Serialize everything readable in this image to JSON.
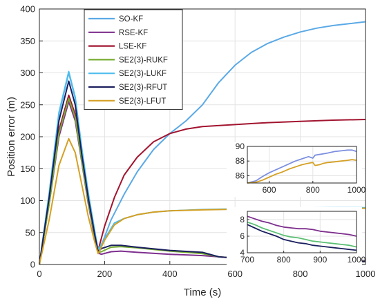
{
  "chart_data": {
    "type": "line",
    "xlabel": "Time (s)",
    "ylabel": "Position error  (m)",
    "xlim": [
      0,
      1000
    ],
    "ylim": [
      0,
      400
    ],
    "xticks": [
      0,
      200,
      400,
      600,
      800,
      1000
    ],
    "yticks": [
      0,
      50,
      100,
      150,
      200,
      250,
      300,
      350,
      400
    ],
    "grid": true,
    "legend_position": "top-center",
    "series": [
      {
        "name": "SO-KF",
        "color": "#5aa9e6",
        "points": [
          [
            0,
            0
          ],
          [
            30,
            110
          ],
          [
            60,
            235
          ],
          [
            90,
            300
          ],
          [
            110,
            260
          ],
          [
            130,
            180
          ],
          [
            150,
            110
          ],
          [
            170,
            50
          ],
          [
            180,
            22
          ],
          [
            190,
            30
          ],
          [
            220,
            70
          ],
          [
            260,
            110
          ],
          [
            300,
            145
          ],
          [
            350,
            180
          ],
          [
            400,
            205
          ],
          [
            450,
            225
          ],
          [
            500,
            250
          ],
          [
            550,
            285
          ],
          [
            600,
            312
          ],
          [
            650,
            332
          ],
          [
            700,
            346
          ],
          [
            750,
            356
          ],
          [
            800,
            364
          ],
          [
            850,
            370
          ],
          [
            900,
            374
          ],
          [
            950,
            377
          ],
          [
            1000,
            380
          ]
        ]
      },
      {
        "name": "RSE-KF",
        "color": "#7e2f8e",
        "points": [
          [
            0,
            0
          ],
          [
            30,
            95
          ],
          [
            60,
            200
          ],
          [
            90,
            255
          ],
          [
            110,
            225
          ],
          [
            130,
            160
          ],
          [
            150,
            95
          ],
          [
            170,
            40
          ],
          [
            180,
            18
          ],
          [
            190,
            16
          ],
          [
            220,
            20
          ],
          [
            250,
            21
          ],
          [
            300,
            19
          ],
          [
            400,
            16
          ],
          [
            500,
            14
          ],
          [
            550,
            12
          ],
          [
            600,
            10
          ],
          [
            700,
            8
          ],
          [
            800,
            7
          ],
          [
            900,
            6
          ],
          [
            1000,
            6
          ]
        ]
      },
      {
        "name": "LSE-KF",
        "color": "#a2142f",
        "points": [
          [
            0,
            0
          ],
          [
            30,
            100
          ],
          [
            60,
            210
          ],
          [
            90,
            265
          ],
          [
            110,
            235
          ],
          [
            130,
            165
          ],
          [
            150,
            100
          ],
          [
            170,
            45
          ],
          [
            180,
            22
          ],
          [
            200,
            60
          ],
          [
            230,
            105
          ],
          [
            260,
            140
          ],
          [
            300,
            168
          ],
          [
            350,
            192
          ],
          [
            400,
            205
          ],
          [
            450,
            212
          ],
          [
            500,
            216
          ],
          [
            600,
            219
          ],
          [
            700,
            222
          ],
          [
            800,
            224
          ],
          [
            900,
            226
          ],
          [
            1000,
            227
          ]
        ]
      },
      {
        "name": "SE2(3)-RUKF",
        "color": "#77ac30",
        "points": [
          [
            0,
            0
          ],
          [
            30,
            95
          ],
          [
            60,
            205
          ],
          [
            90,
            260
          ],
          [
            110,
            230
          ],
          [
            130,
            162
          ],
          [
            150,
            98
          ],
          [
            170,
            42
          ],
          [
            180,
            19
          ],
          [
            190,
            20
          ],
          [
            220,
            27
          ],
          [
            250,
            28
          ],
          [
            300,
            26
          ],
          [
            400,
            21
          ],
          [
            500,
            17
          ],
          [
            550,
            12
          ],
          [
            600,
            10
          ],
          [
            700,
            8
          ],
          [
            800,
            6.5
          ],
          [
            900,
            5.5
          ],
          [
            1000,
            5
          ]
        ]
      },
      {
        "name": "SE2(3)-LUKF",
        "color": "#4dbeee",
        "points": [
          [
            0,
            0
          ],
          [
            30,
            112
          ],
          [
            60,
            238
          ],
          [
            90,
            302
          ],
          [
            110,
            262
          ],
          [
            130,
            182
          ],
          [
            150,
            112
          ],
          [
            170,
            52
          ],
          [
            180,
            23
          ],
          [
            200,
            40
          ],
          [
            230,
            65
          ],
          [
            260,
            72
          ],
          [
            300,
            78
          ],
          [
            350,
            82
          ],
          [
            400,
            84
          ],
          [
            500,
            86
          ],
          [
            600,
            87
          ],
          [
            700,
            88
          ],
          [
            800,
            88.5
          ],
          [
            900,
            89
          ],
          [
            1000,
            89
          ]
        ]
      },
      {
        "name": "SE2(3)-RFUT",
        "color": "#1a1f5e",
        "points": [
          [
            0,
            0
          ],
          [
            30,
            105
          ],
          [
            60,
            225
          ],
          [
            90,
            287
          ],
          [
            110,
            250
          ],
          [
            130,
            172
          ],
          [
            150,
            104
          ],
          [
            170,
            46
          ],
          [
            180,
            20
          ],
          [
            190,
            25
          ],
          [
            220,
            30
          ],
          [
            250,
            30
          ],
          [
            300,
            27
          ],
          [
            400,
            22
          ],
          [
            500,
            19
          ],
          [
            550,
            12
          ],
          [
            600,
            10
          ],
          [
            700,
            8
          ],
          [
            800,
            6
          ],
          [
            900,
            5
          ],
          [
            1000,
            4.5
          ]
        ]
      },
      {
        "name": "SE2(3)-LFUT",
        "color": "#d4a024",
        "points": [
          [
            0,
            0
          ],
          [
            30,
            70
          ],
          [
            60,
            155
          ],
          [
            90,
            197
          ],
          [
            110,
            175
          ],
          [
            130,
            125
          ],
          [
            150,
            75
          ],
          [
            170,
            35
          ],
          [
            180,
            17
          ],
          [
            200,
            38
          ],
          [
            230,
            62
          ],
          [
            260,
            72
          ],
          [
            300,
            78
          ],
          [
            350,
            82
          ],
          [
            400,
            84
          ],
          [
            500,
            85.5
          ],
          [
            600,
            86.5
          ],
          [
            700,
            87
          ],
          [
            800,
            87.5
          ],
          [
            900,
            88
          ],
          [
            1000,
            88
          ]
        ]
      }
    ],
    "insets": [
      {
        "xlim": [
          500,
          1000
        ],
        "ylim": [
          85,
          90
        ],
        "xticks": [
          600,
          800,
          1000
        ],
        "yticks": [
          86,
          88,
          90
        ],
        "series": [
          {
            "name": "SE2(3)-LUKF",
            "color": "#7c8fe0",
            "points": [
              [
                500,
                85
              ],
              [
                540,
                85.3
              ],
              [
                570,
                85.9
              ],
              [
                600,
                86.4
              ],
              [
                630,
                86.8
              ],
              [
                660,
                87.2
              ],
              [
                690,
                87.6
              ],
              [
                720,
                88
              ],
              [
                750,
                88.3
              ],
              [
                780,
                88.6
              ],
              [
                800,
                88.4
              ],
              [
                810,
                88.8
              ],
              [
                830,
                88.9
              ],
              [
                850,
                89
              ],
              [
                870,
                89.1
              ],
              [
                900,
                89.3
              ],
              [
                930,
                89.4
              ],
              [
                960,
                89.5
              ],
              [
                980,
                89.5
              ],
              [
                1000,
                89.3
              ]
            ]
          },
          {
            "name": "SE2(3)-LFUT",
            "color": "#d4a024",
            "points": [
              [
                500,
                85
              ],
              [
                540,
                85.1
              ],
              [
                570,
                85.4
              ],
              [
                600,
                85.8
              ],
              [
                630,
                86.2
              ],
              [
                660,
                86.5
              ],
              [
                690,
                86.9
              ],
              [
                720,
                87.2
              ],
              [
                750,
                87.5
              ],
              [
                780,
                87.7
              ],
              [
                800,
                87.8
              ],
              [
                810,
                87.4
              ],
              [
                830,
                87.5
              ],
              [
                850,
                87.7
              ],
              [
                870,
                87.8
              ],
              [
                900,
                87.9
              ],
              [
                930,
                88
              ],
              [
                960,
                88.1
              ],
              [
                980,
                88.2
              ],
              [
                1000,
                88.1
              ]
            ]
          }
        ]
      },
      {
        "xlim": [
          700,
          1000
        ],
        "ylim": [
          4,
          9
        ],
        "xticks": [
          700,
          800,
          900,
          1000
        ],
        "yticks": [
          4,
          6,
          8
        ],
        "series": [
          {
            "name": "RSE-KF",
            "color": "#7e2f8e",
            "points": [
              [
                700,
                8.4
              ],
              [
                720,
                8.1
              ],
              [
                740,
                7.8
              ],
              [
                760,
                7.6
              ],
              [
                780,
                7.3
              ],
              [
                800,
                7.1
              ],
              [
                820,
                7.0
              ],
              [
                840,
                6.9
              ],
              [
                860,
                6.9
              ],
              [
                880,
                6.8
              ],
              [
                900,
                6.6
              ],
              [
                920,
                6.5
              ],
              [
                940,
                6.4
              ],
              [
                960,
                6.3
              ],
              [
                980,
                6.2
              ],
              [
                1000,
                6.0
              ]
            ]
          },
          {
            "name": "SE2(3)-RUKF",
            "color": "#5bbf73",
            "points": [
              [
                700,
                7.7
              ],
              [
                720,
                7.4
              ],
              [
                740,
                7.0
              ],
              [
                760,
                6.7
              ],
              [
                780,
                6.4
              ],
              [
                800,
                6.1
              ],
              [
                820,
                5.9
              ],
              [
                840,
                5.8
              ],
              [
                860,
                5.6
              ],
              [
                880,
                5.4
              ],
              [
                900,
                5.3
              ],
              [
                920,
                5.2
              ],
              [
                940,
                5.1
              ],
              [
                960,
                5.0
              ],
              [
                980,
                4.9
              ],
              [
                1000,
                4.7
              ]
            ]
          },
          {
            "name": "SE2(3)-RFUT",
            "color": "#1a1f5e",
            "points": [
              [
                700,
                7.4
              ],
              [
                720,
                7.0
              ],
              [
                740,
                6.6
              ],
              [
                760,
                6.3
              ],
              [
                780,
                6.0
              ],
              [
                800,
                5.6
              ],
              [
                820,
                5.4
              ],
              [
                840,
                5.2
              ],
              [
                860,
                5.1
              ],
              [
                880,
                4.9
              ],
              [
                900,
                4.8
              ],
              [
                920,
                4.7
              ],
              [
                940,
                4.6
              ],
              [
                960,
                4.5
              ],
              [
                980,
                4.4
              ],
              [
                1000,
                4.3
              ]
            ]
          }
        ]
      }
    ]
  }
}
